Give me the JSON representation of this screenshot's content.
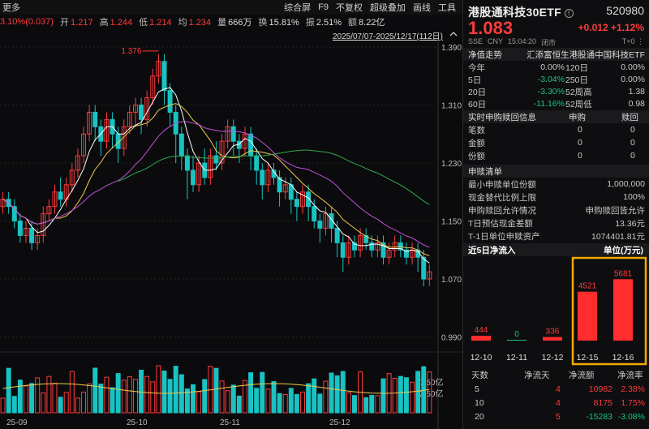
{
  "toolbar": {
    "more": "更多",
    "items": [
      "综合屏",
      "F9",
      "不复权",
      "超级叠加",
      "画线",
      "工具"
    ]
  },
  "stats": {
    "change": "3.10%(0.037)",
    "open_label": "开",
    "open": "1.217",
    "high_label": "高",
    "high": "1.244",
    "low_label": "低",
    "low": "1.214",
    "avg_label": "均",
    "avg": "1.234",
    "vol_label": "量",
    "vol": "666万",
    "turn_label": "换",
    "turn": "15.81%",
    "amp_label": "振",
    "amp": "2.51%",
    "amt_label": "额",
    "amt": "8.22亿"
  },
  "range_text": "2025/07/07-2025/12/17(112日)",
  "chart_data": [
    {
      "type": "candlestick",
      "y_ticks": [
        "1.390",
        "1.310",
        "1.230",
        "1.150",
        "1.070",
        "0.990"
      ],
      "ylim": [
        0.975,
        1.4
      ],
      "max_label": "1.376",
      "x_labels": [
        "25-09",
        "25-10",
        "25-11",
        "25-12"
      ],
      "candles": [
        [
          1.17,
          1.18,
          1.16,
          1.19,
          0
        ],
        [
          1.18,
          1.17,
          1.16,
          1.19,
          1
        ],
        [
          1.17,
          1.15,
          1.14,
          1.18,
          1
        ],
        [
          1.15,
          1.13,
          1.12,
          1.16,
          1
        ],
        [
          1.13,
          1.14,
          1.12,
          1.15,
          0
        ],
        [
          1.14,
          1.12,
          1.11,
          1.15,
          1
        ],
        [
          1.12,
          1.13,
          1.11,
          1.14,
          0
        ],
        [
          1.13,
          1.16,
          1.12,
          1.17,
          0
        ],
        [
          1.16,
          1.17,
          1.15,
          1.18,
          0
        ],
        [
          1.17,
          1.19,
          1.16,
          1.2,
          0
        ],
        [
          1.19,
          1.18,
          1.17,
          1.21,
          1
        ],
        [
          1.18,
          1.2,
          1.17,
          1.21,
          0
        ],
        [
          1.2,
          1.22,
          1.19,
          1.23,
          0
        ],
        [
          1.22,
          1.24,
          1.21,
          1.25,
          0
        ],
        [
          1.24,
          1.27,
          1.23,
          1.28,
          0
        ],
        [
          1.27,
          1.3,
          1.26,
          1.31,
          0
        ],
        [
          1.3,
          1.28,
          1.26,
          1.31,
          1
        ],
        [
          1.28,
          1.26,
          1.24,
          1.29,
          1
        ],
        [
          1.26,
          1.29,
          1.25,
          1.3,
          0
        ],
        [
          1.29,
          1.27,
          1.25,
          1.3,
          1
        ],
        [
          1.27,
          1.25,
          1.23,
          1.28,
          1
        ],
        [
          1.25,
          1.28,
          1.24,
          1.29,
          0
        ],
        [
          1.28,
          1.3,
          1.27,
          1.31,
          0
        ],
        [
          1.3,
          1.31,
          1.28,
          1.32,
          0
        ],
        [
          1.31,
          1.29,
          1.27,
          1.32,
          1
        ],
        [
          1.29,
          1.32,
          1.28,
          1.33,
          0
        ],
        [
          1.32,
          1.35,
          1.31,
          1.36,
          0
        ],
        [
          1.35,
          1.37,
          1.34,
          1.38,
          0
        ],
        [
          1.37,
          1.33,
          1.31,
          1.38,
          1
        ],
        [
          1.33,
          1.3,
          1.28,
          1.34,
          1
        ],
        [
          1.3,
          1.27,
          1.23,
          1.31,
          1
        ],
        [
          1.27,
          1.24,
          1.22,
          1.28,
          1
        ],
        [
          1.24,
          1.22,
          1.18,
          1.25,
          1
        ],
        [
          1.22,
          1.2,
          1.19,
          1.24,
          1
        ],
        [
          1.2,
          1.23,
          1.19,
          1.24,
          0
        ],
        [
          1.23,
          1.21,
          1.2,
          1.25,
          1
        ],
        [
          1.21,
          1.24,
          1.2,
          1.25,
          0
        ],
        [
          1.24,
          1.23,
          1.22,
          1.26,
          1
        ],
        [
          1.23,
          1.26,
          1.22,
          1.27,
          0
        ],
        [
          1.26,
          1.28,
          1.25,
          1.29,
          0
        ],
        [
          1.28,
          1.26,
          1.24,
          1.29,
          1
        ],
        [
          1.26,
          1.25,
          1.23,
          1.27,
          1
        ],
        [
          1.25,
          1.27,
          1.24,
          1.28,
          0
        ],
        [
          1.27,
          1.24,
          1.22,
          1.28,
          1
        ],
        [
          1.24,
          1.22,
          1.2,
          1.25,
          1
        ],
        [
          1.22,
          1.2,
          1.18,
          1.23,
          1
        ],
        [
          1.2,
          1.22,
          1.19,
          1.23,
          0
        ],
        [
          1.22,
          1.21,
          1.2,
          1.23,
          1
        ],
        [
          1.21,
          1.19,
          1.17,
          1.22,
          1
        ],
        [
          1.19,
          1.2,
          1.18,
          1.21,
          0
        ],
        [
          1.2,
          1.18,
          1.16,
          1.21,
          1
        ],
        [
          1.18,
          1.17,
          1.15,
          1.19,
          1
        ],
        [
          1.17,
          1.19,
          1.16,
          1.2,
          0
        ],
        [
          1.19,
          1.17,
          1.15,
          1.2,
          1
        ],
        [
          1.17,
          1.15,
          1.14,
          1.18,
          1
        ],
        [
          1.15,
          1.14,
          1.12,
          1.16,
          1
        ],
        [
          1.14,
          1.16,
          1.13,
          1.17,
          0
        ],
        [
          1.16,
          1.14,
          1.12,
          1.17,
          1
        ],
        [
          1.14,
          1.12,
          1.1,
          1.15,
          1
        ],
        [
          1.12,
          1.1,
          1.08,
          1.13,
          1
        ],
        [
          1.1,
          1.12,
          1.09,
          1.13,
          0
        ],
        [
          1.12,
          1.11,
          1.1,
          1.13,
          1
        ],
        [
          1.11,
          1.13,
          1.1,
          1.14,
          0
        ],
        [
          1.13,
          1.12,
          1.11,
          1.14,
          1
        ],
        [
          1.12,
          1.11,
          1.1,
          1.13,
          1
        ],
        [
          1.11,
          1.12,
          1.1,
          1.13,
          0
        ],
        [
          1.12,
          1.1,
          1.09,
          1.13,
          1
        ],
        [
          1.1,
          1.11,
          1.09,
          1.12,
          0
        ],
        [
          1.11,
          1.12,
          1.1,
          1.13,
          0
        ],
        [
          1.12,
          1.11,
          1.1,
          1.13,
          1
        ],
        [
          1.11,
          1.1,
          1.09,
          1.12,
          1
        ],
        [
          1.1,
          1.11,
          1.09,
          1.12,
          0
        ],
        [
          1.11,
          1.1,
          1.08,
          1.12,
          1
        ],
        [
          1.1,
          1.07,
          1.06,
          1.11,
          1
        ],
        [
          1.07,
          1.08,
          1.06,
          1.09,
          0
        ]
      ],
      "ma_lines": [
        {
          "color": "#ffffff",
          "name": "ma5"
        },
        {
          "color": "#f2c94c",
          "name": "ma10"
        },
        {
          "color": "#c04fd8",
          "name": "ma20"
        },
        {
          "color": "#2fa84f",
          "name": "ma60"
        }
      ],
      "volume_ticks": [
        "7.50亿",
        "2.50亿"
      ]
    },
    {
      "type": "bar",
      "title": "近5日净流入",
      "unit": "单位(万元)",
      "categories": [
        "12-10",
        "12-11",
        "12-12",
        "12-15",
        "12-16"
      ],
      "values": [
        444,
        0,
        336,
        4521,
        5681
      ]
    }
  ],
  "right": {
    "title": "港股通科技30ETF",
    "code": "520980",
    "price": "1.083",
    "delta": "+0.012  +1.12%",
    "sub": [
      "SSE",
      "CNY",
      "15:04:20",
      "闭市"
    ],
    "sub_right": "T+0",
    "section1": "净值走势",
    "fund_name": "汇添富恒生港股通中国科技ETF",
    "perf": [
      [
        "今年",
        "0.00%",
        "120日",
        "0.00%"
      ],
      [
        "5日",
        "-3.04%",
        "250日",
        "0.00%"
      ],
      [
        "20日",
        "-3.30%",
        "52周高",
        "1.38"
      ],
      [
        "60日",
        "-11.16%",
        "52周低",
        "0.98"
      ]
    ],
    "section2": "实时申购赎回信息",
    "sec2_col1": "申购",
    "sec2_col2": "赎回",
    "rt": [
      [
        "笔数",
        "0",
        "0"
      ],
      [
        "金额",
        "0",
        "0"
      ],
      [
        "份额",
        "0",
        "0"
      ]
    ],
    "section3": "申赎清单",
    "list": [
      [
        "最小申赎单位份额",
        "1,000,000"
      ],
      [
        "现金替代比例上限",
        "100%"
      ],
      [
        "申购赎回允许情况",
        "申购赎回皆允许"
      ],
      [
        "T日预估现金差额",
        "13.36元"
      ],
      [
        "T-1日单位申赎资产",
        "1074401.81元"
      ]
    ],
    "flow_title": "近5日净流入",
    "flow_unit": "单位(万元)",
    "table_head": [
      "天数",
      "净流天",
      "净流额",
      "净流率"
    ],
    "table": [
      [
        "5",
        "4",
        "10982",
        "2.38%"
      ],
      [
        "10",
        "4",
        "8175",
        "1.75%"
      ],
      [
        "20",
        "5",
        "-15283",
        "-3.08%"
      ]
    ]
  },
  "colors": {
    "up": "#ff3b3b",
    "down": "#19c37d",
    "highlight": "#f2a900"
  }
}
